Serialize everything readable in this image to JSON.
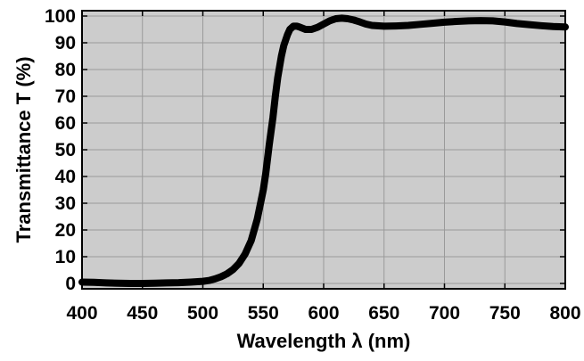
{
  "chart_data": {
    "type": "line",
    "xlabel": "Wavelength λ (nm)",
    "ylabel": "Transmittance T (%)",
    "xlim": [
      400,
      800
    ],
    "ylim": [
      -2,
      102
    ],
    "x_ticks": [
      "400",
      "450",
      "500",
      "550",
      "600",
      "650",
      "700",
      "750",
      "800"
    ],
    "y_ticks": [
      "0",
      "10",
      "20",
      "30",
      "40",
      "50",
      "60",
      "70",
      "80",
      "90",
      "100"
    ],
    "grid": true,
    "legend": "none",
    "colors": {
      "plot_background": "#cccccc",
      "line": "#000000",
      "grid": "#9a9a9a"
    },
    "series": [
      {
        "x": [
          400,
          410,
          420,
          430,
          440,
          450,
          460,
          470,
          480,
          490,
          500,
          505,
          510,
          515,
          520,
          525,
          530,
          535,
          540,
          545,
          550,
          552,
          555,
          558,
          560,
          562,
          565,
          567,
          570,
          572,
          575,
          578,
          580,
          585,
          590,
          595,
          600,
          605,
          610,
          615,
          620,
          625,
          630,
          635,
          640,
          650,
          660,
          670,
          680,
          690,
          700,
          710,
          720,
          730,
          740,
          750,
          760,
          770,
          780,
          790,
          800
        ],
        "y": [
          0.5,
          0.4,
          0.2,
          0.1,
          0.0,
          0.0,
          0.1,
          0.2,
          0.3,
          0.5,
          0.8,
          1.1,
          1.7,
          2.5,
          3.6,
          5.2,
          7.5,
          11.0,
          16.0,
          24.0,
          35.0,
          41.0,
          52.0,
          62.0,
          70.0,
          77.0,
          85.0,
          89.0,
          93.0,
          95.0,
          96.2,
          96.2,
          95.9,
          95.0,
          95.0,
          95.8,
          97.0,
          98.2,
          99.0,
          99.2,
          99.0,
          98.5,
          97.8,
          97.0,
          96.5,
          96.2,
          96.3,
          96.5,
          96.9,
          97.3,
          97.7,
          98.0,
          98.2,
          98.3,
          98.2,
          97.8,
          97.2,
          96.8,
          96.4,
          96.1,
          95.9
        ]
      }
    ]
  }
}
